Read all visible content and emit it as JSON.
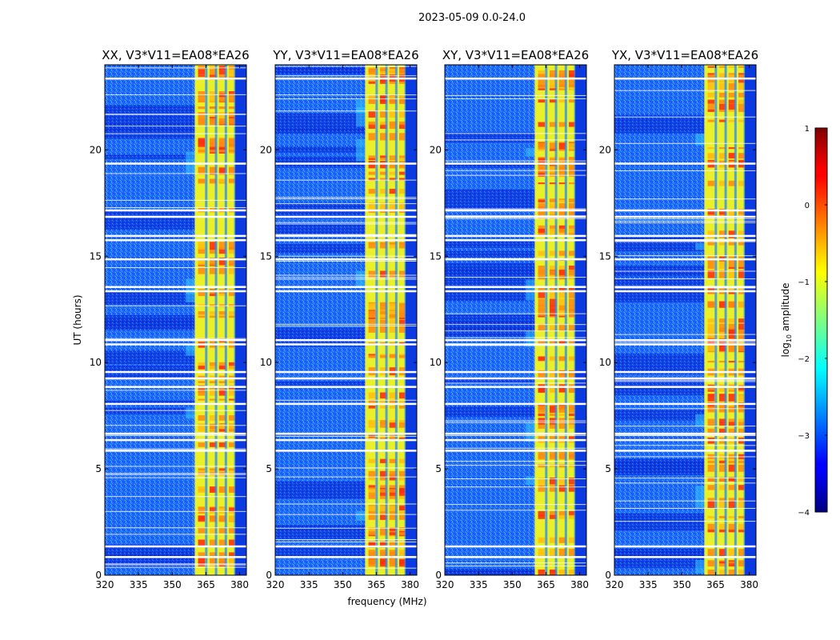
{
  "figure": {
    "suptitle": "2023-05-09 0.0-24.0",
    "xlabel": "frequency (MHz)",
    "ylabel": "UT (hours)"
  },
  "chart_data": {
    "type": "heatmap",
    "x_range": [
      320,
      383
    ],
    "y_range": [
      0,
      24
    ],
    "x_ticks": [
      320,
      335,
      350,
      365,
      380
    ],
    "y_ticks": [
      0,
      5,
      10,
      15,
      20
    ],
    "x_tick_labels": [
      "320",
      "335",
      "350",
      "365",
      "380"
    ],
    "y_tick_labels": [
      "0",
      "5",
      "10",
      "15",
      "20"
    ],
    "bright_band_mhz": [
      360,
      379
    ],
    "gap_times_hours": [
      23.4,
      19.4,
      17.2,
      16.9,
      16.0,
      15.8,
      14.9,
      13.6,
      13.4,
      11.1,
      10.9,
      9.6,
      9.3,
      8.9,
      8.1,
      6.7,
      6.4,
      5.9,
      1.4,
      0.9
    ],
    "panels": [
      {
        "title": "XX, V3*V11=EA08*EA26",
        "pol": "XX"
      },
      {
        "title": "YY, V3*V11=EA08*EA26",
        "pol": "YY"
      },
      {
        "title": "XY, V3*V11=EA08*EA26",
        "pol": "XY"
      },
      {
        "title": "YX, V3*V11=EA08*EA26",
        "pol": "YX"
      }
    ],
    "colorbar": {
      "label": "log10 amplitude",
      "label_parts": [
        "log",
        "10",
        " amplitude"
      ],
      "range": [
        -4,
        1
      ],
      "ticks": [
        1,
        0,
        -1,
        -2,
        -3,
        -4
      ],
      "tick_labels": [
        "1",
        "0",
        "−1",
        "−2",
        "−3",
        "−4"
      ],
      "colormap": [
        "#00007f",
        "#0000ff",
        "#007fff",
        "#00ffff",
        "#7fff7f",
        "#ffff00",
        "#ff7f00",
        "#ff0000",
        "#7f0000"
      ]
    }
  }
}
